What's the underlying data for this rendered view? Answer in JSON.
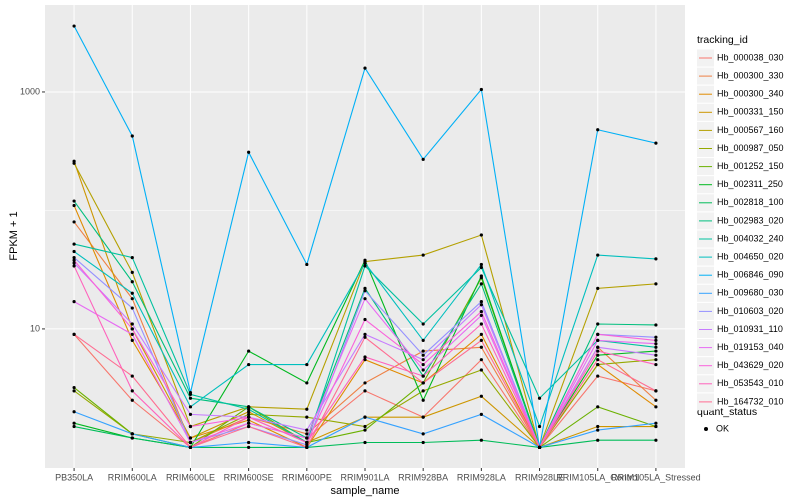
{
  "chart_data": {
    "type": "line",
    "log_scale": true,
    "grid": true,
    "x_label": "sample_name",
    "y_label": "FPKM + 1",
    "legend_title": "tracking_id",
    "legend_position": "right",
    "point_legend": {
      "title": "quant_status",
      "label": "OK"
    },
    "categories": [
      "PB350LA",
      "RRIM600LA",
      "RRIM600LE",
      "RRIM600SE",
      "RRIM600PE",
      "RRIM901LA",
      "RRIM928BA",
      "RRIM928LA",
      "RRIM928LE",
      "RRIM105LA_Control",
      "RRIM105LA_Stressed"
    ],
    "ylim": [
      0.67,
      5420
    ],
    "yticks": [
      10,
      1000
    ],
    "series": [
      {
        "name": "Hb_000038_030",
        "color": "#F8766D",
        "values": [
          9,
          2.5,
          1,
          1.6,
          1.2,
          3,
          1.8,
          5.5,
          1,
          4,
          3
        ]
      },
      {
        "name": "Hb_000300_330",
        "color": "#EE8044",
        "values": [
          80,
          18,
          1.1,
          1.8,
          1.3,
          3.5,
          6.5,
          7,
          1,
          7,
          2.5
        ]
      },
      {
        "name": "Hb_000300_340",
        "color": "#E08B00",
        "values": [
          110,
          8,
          1.2,
          1.7,
          1,
          5.5,
          3.5,
          9,
          1,
          5,
          2.2
        ]
      },
      {
        "name": "Hb_000331_150",
        "color": "#CD9600",
        "values": [
          260,
          10,
          1.2,
          2,
          1.1,
          1.8,
          1.8,
          2.7,
          1,
          1.5,
          1.5
        ]
      },
      {
        "name": "Hb_000567_160",
        "color": "#B4A000",
        "values": [
          250,
          30,
          1.5,
          2.2,
          2.1,
          37,
          42,
          62,
          1,
          22,
          24
        ]
      },
      {
        "name": "Hb_000987_050",
        "color": "#95A900",
        "values": [
          3,
          1.3,
          1.1,
          1.9,
          1.8,
          1.5,
          3,
          4.5,
          1,
          5,
          5.5
        ]
      },
      {
        "name": "Hb_001252_150",
        "color": "#6BB100",
        "values": [
          3.2,
          1.3,
          1,
          2.2,
          1.1,
          1.4,
          3.5,
          27,
          1,
          2.2,
          1.5
        ]
      },
      {
        "name": "Hb_002311_250",
        "color": "#00B81F",
        "values": [
          1.6,
          1.2,
          1,
          6.5,
          3.5,
          38,
          2.5,
          28,
          1,
          6,
          6.5
        ]
      },
      {
        "name": "Hb_002818_100",
        "color": "#00BC59",
        "values": [
          1.5,
          1.2,
          1,
          1,
          1,
          1.1,
          1.1,
          1.15,
          1,
          1.15,
          1.15
        ]
      },
      {
        "name": "Hb_002983_020",
        "color": "#00BF7D",
        "values": [
          120,
          25,
          2.6,
          2.2,
          1.2,
          22,
          4,
          24,
          1,
          11,
          10.8
        ]
      },
      {
        "name": "Hb_004032_240",
        "color": "#00C19F",
        "values": [
          52,
          40,
          2.8,
          2.1,
          1.1,
          34,
          11,
          33,
          2.6,
          8,
          7
        ]
      },
      {
        "name": "Hb_004650_020",
        "color": "#00BFBE",
        "values": [
          45,
          20,
          2.2,
          5,
          5,
          36,
          8,
          35,
          1.5,
          42,
          39
        ]
      },
      {
        "name": "Hb_006846_090",
        "color": "#00B0F6",
        "values": [
          3600,
          425,
          2.9,
          310,
          35,
          1590,
          270,
          1050,
          1,
          480,
          370
        ]
      },
      {
        "name": "Hb_009680_030",
        "color": "#35A2FF",
        "values": [
          2,
          1.3,
          1,
          1.1,
          1,
          1.8,
          1.3,
          1.9,
          1,
          1.4,
          1.6
        ]
      },
      {
        "name": "Hb_010603_020",
        "color": "#9590FF",
        "values": [
          40,
          15,
          1.1,
          1.5,
          1.05,
          21,
          6,
          17,
          1,
          9,
          8.5
        ]
      },
      {
        "name": "Hb_010931_110",
        "color": "#C77CFF",
        "values": [
          36,
          11,
          1.9,
          1.8,
          1.4,
          9,
          5.5,
          16,
          1,
          7,
          6
        ]
      },
      {
        "name": "Hb_019153_040",
        "color": "#E76BF3",
        "values": [
          17,
          9,
          1.1,
          1.6,
          1.2,
          18,
          4.5,
          13,
          1,
          8,
          7.5
        ]
      },
      {
        "name": "Hb_043629_020",
        "color": "#FA62DB",
        "values": [
          38,
          10,
          1.5,
          1.8,
          1.1,
          12,
          5,
          14,
          1,
          9,
          8
        ]
      },
      {
        "name": "Hb_053543_010",
        "color": "#FF62BC",
        "values": [
          34,
          3,
          1,
          1.8,
          1.1,
          5.8,
          4,
          11,
          1,
          6.5,
          5
        ]
      },
      {
        "name": "Hb_164732_010",
        "color": "#FF6C91",
        "values": [
          9,
          4,
          1,
          1.5,
          1,
          8.5,
          3.5,
          8,
          1,
          5.5,
          3
        ]
      }
    ]
  }
}
